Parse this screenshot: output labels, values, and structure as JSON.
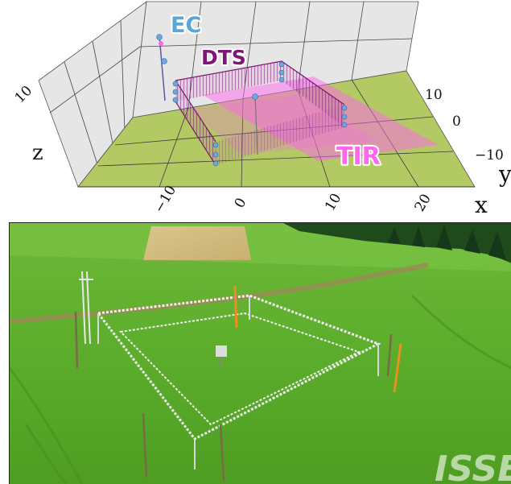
{
  "diagram": {
    "labels": {
      "ec": "EC",
      "dts": "DTS",
      "tir": "TIR"
    },
    "axes": {
      "x": "x",
      "y": "y",
      "z": "z"
    },
    "x_ticks": [
      "−10",
      "0",
      "10",
      "20"
    ],
    "y_ticks": [
      "10",
      "0",
      "−10"
    ],
    "z_ticks": [
      "10"
    ],
    "colors": {
      "ec": "#5aa6d8",
      "dts": "#7d1676",
      "tir": "#ff66ee",
      "ground": "#b3c964",
      "walls": "#e6e6e6",
      "sensor": "#6fa8dc"
    }
  },
  "photo": {
    "watermark": "ISSE"
  }
}
